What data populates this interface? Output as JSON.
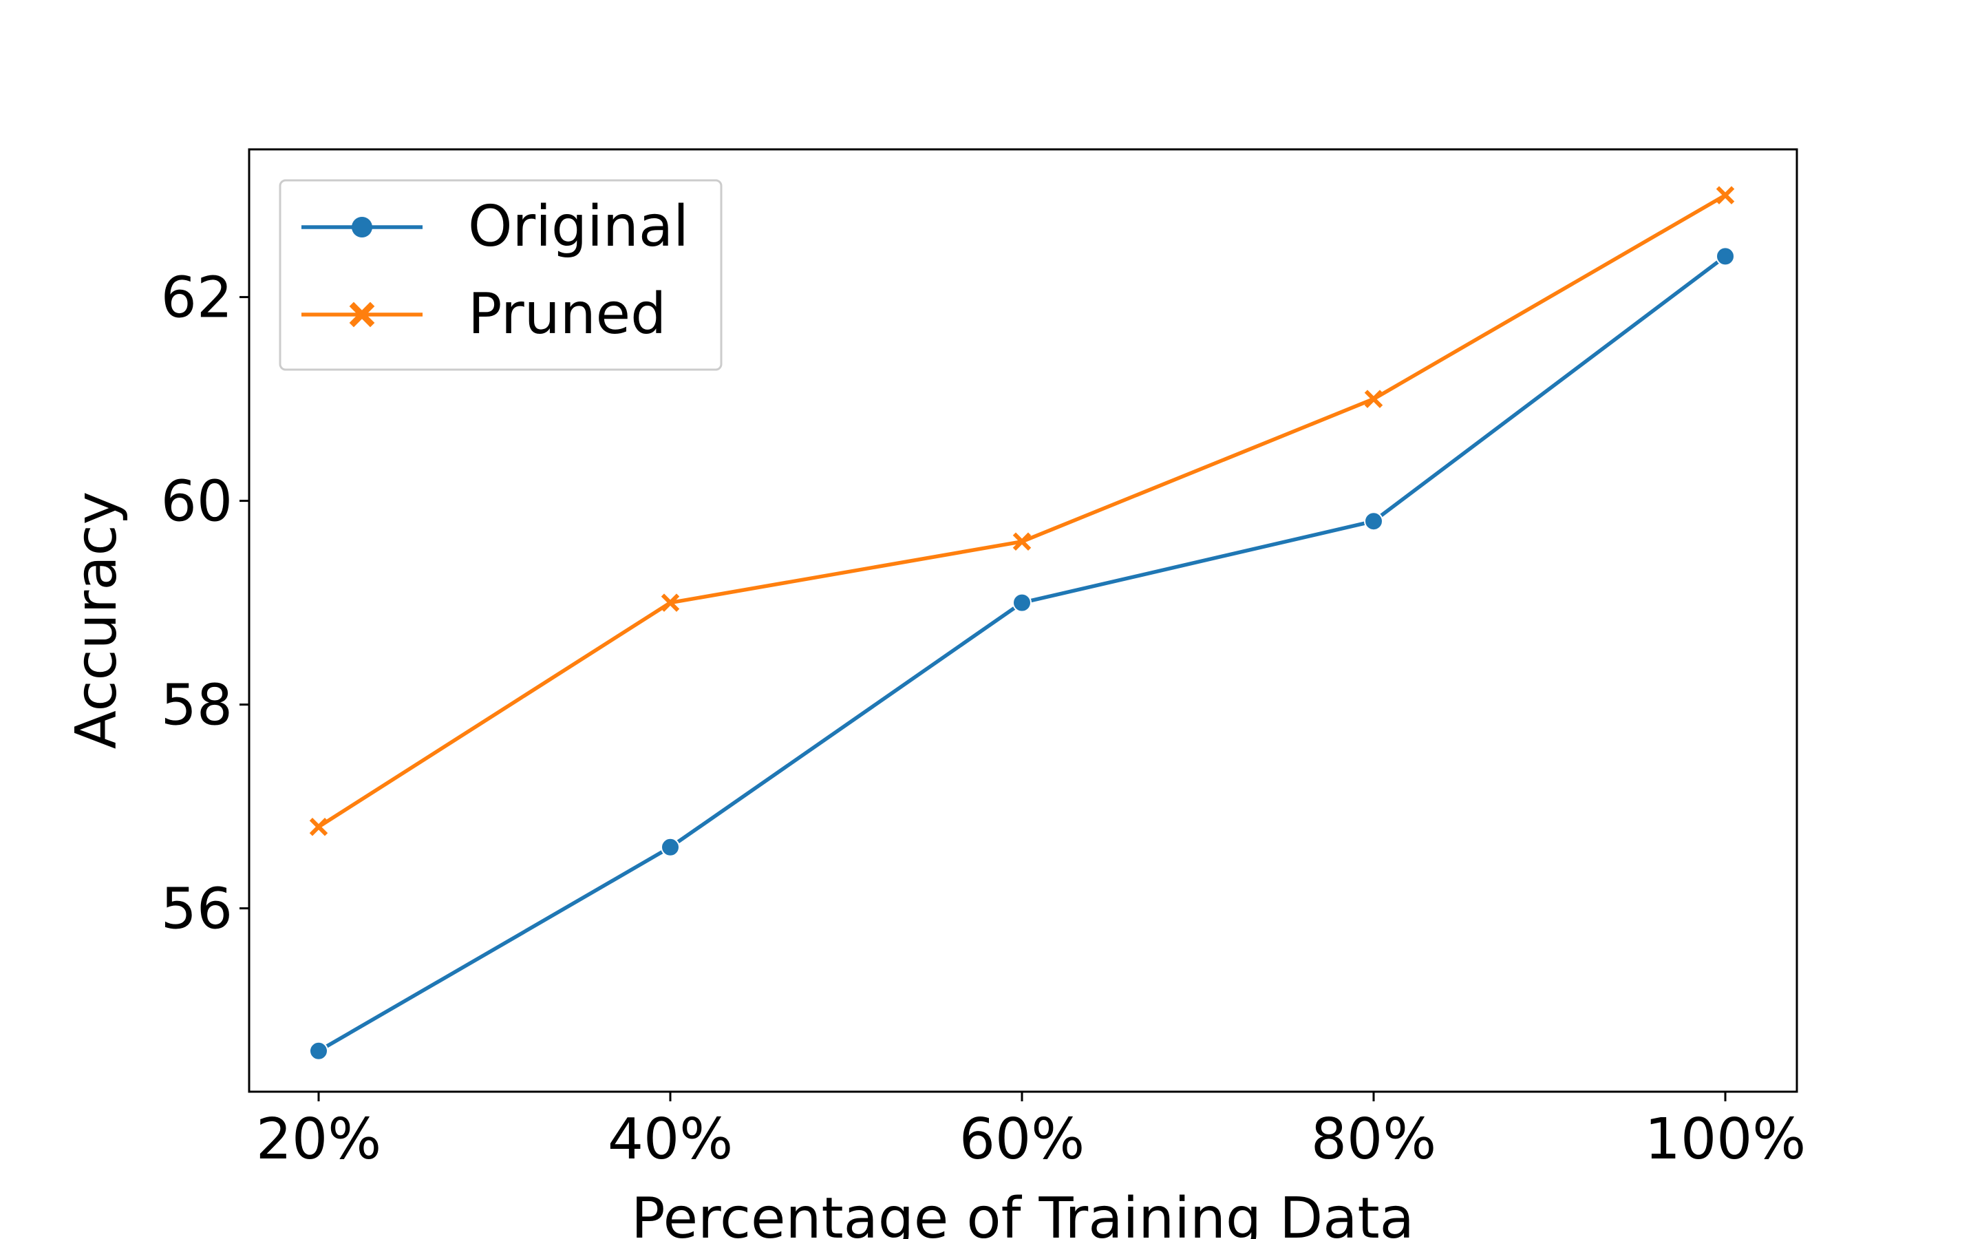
{
  "chart_data": {
    "type": "line",
    "categories": [
      "20%",
      "40%",
      "60%",
      "80%",
      "100%"
    ],
    "series": [
      {
        "name": "Original",
        "values": [
          54.6,
          56.6,
          59.0,
          59.8,
          62.4
        ],
        "color": "#1f77b4",
        "marker": "circle"
      },
      {
        "name": "Pruned",
        "values": [
          56.8,
          59.0,
          59.6,
          61.0,
          63.0
        ],
        "color": "#ff7f0e",
        "marker": "x"
      }
    ],
    "xlabel": "Percentage of Training Data",
    "ylabel": "Accuracy",
    "yticks": [
      "56",
      "58",
      "60",
      "62"
    ],
    "ylim": [
      54.2,
      63.45
    ],
    "grid": false,
    "legend_position": "top-left"
  }
}
